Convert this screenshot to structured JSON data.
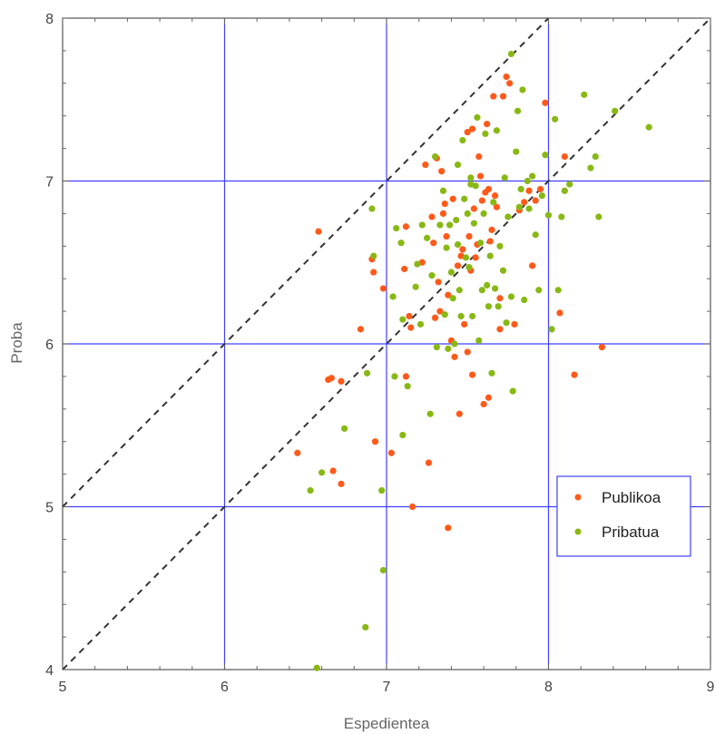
{
  "chart_data": {
    "type": "scatter",
    "title": "",
    "xlabel": "Espedientea",
    "ylabel": "Proba",
    "xlim": [
      5,
      9
    ],
    "ylim": [
      4,
      8
    ],
    "xticks": [
      "5",
      "6",
      "7",
      "8",
      "9"
    ],
    "yticks": [
      "4",
      "5",
      "6",
      "7",
      "8"
    ],
    "grid": true,
    "grid_color": "#4040ff",
    "reference_lines": [
      {
        "style": "dashed",
        "color": "#333333",
        "points": [
          [
            5,
            4
          ],
          [
            9,
            8
          ]
        ]
      },
      {
        "style": "dashed",
        "color": "#333333",
        "points": [
          [
            5,
            5
          ],
          [
            8,
            8
          ]
        ]
      }
    ],
    "legend_position": "right",
    "series": [
      {
        "name": "Publikoa",
        "color": "#ff5a1a",
        "points": [
          [
            6.58,
            6.69
          ],
          [
            6.45,
            5.33
          ],
          [
            6.64,
            5.78
          ],
          [
            6.66,
            5.79
          ],
          [
            6.67,
            5.22
          ],
          [
            6.72,
            5.77
          ],
          [
            6.72,
            5.14
          ],
          [
            6.84,
            6.09
          ],
          [
            6.91,
            6.52
          ],
          [
            6.92,
            6.44
          ],
          [
            6.93,
            5.4
          ],
          [
            6.98,
            6.34
          ],
          [
            7.03,
            5.33
          ],
          [
            7.11,
            6.46
          ],
          [
            7.12,
            6.72
          ],
          [
            7.12,
            5.8
          ],
          [
            7.14,
            6.17
          ],
          [
            7.15,
            6.1
          ],
          [
            7.16,
            5.0
          ],
          [
            7.22,
            6.5
          ],
          [
            7.24,
            7.1
          ],
          [
            7.26,
            5.27
          ],
          [
            7.28,
            6.78
          ],
          [
            7.29,
            6.62
          ],
          [
            7.3,
            6.16
          ],
          [
            7.31,
            7.14
          ],
          [
            7.32,
            6.38
          ],
          [
            7.33,
            6.2
          ],
          [
            7.34,
            7.06
          ],
          [
            7.35,
            6.8
          ],
          [
            7.36,
            6.86
          ],
          [
            7.37,
            6.66
          ],
          [
            7.38,
            6.3
          ],
          [
            7.38,
            4.87
          ],
          [
            7.4,
            6.02
          ],
          [
            7.41,
            6.89
          ],
          [
            7.42,
            5.92
          ],
          [
            7.44,
            6.48
          ],
          [
            7.45,
            5.57
          ],
          [
            7.46,
            6.54
          ],
          [
            7.47,
            6.58
          ],
          [
            7.48,
            6.12
          ],
          [
            7.5,
            5.95
          ],
          [
            7.5,
            7.3
          ],
          [
            7.51,
            6.66
          ],
          [
            7.52,
            6.45
          ],
          [
            7.53,
            7.32
          ],
          [
            7.53,
            5.81
          ],
          [
            7.54,
            6.83
          ],
          [
            7.55,
            6.53
          ],
          [
            7.56,
            6.61
          ],
          [
            7.57,
            7.15
          ],
          [
            7.58,
            7.03
          ],
          [
            7.59,
            6.88
          ],
          [
            7.6,
            5.63
          ],
          [
            7.61,
            6.93
          ],
          [
            7.62,
            7.35
          ],
          [
            7.63,
            6.95
          ],
          [
            7.63,
            5.67
          ],
          [
            7.64,
            6.63
          ],
          [
            7.65,
            6.7
          ],
          [
            7.66,
            7.52
          ],
          [
            7.67,
            6.91
          ],
          [
            7.68,
            6.84
          ],
          [
            7.7,
            6.28
          ],
          [
            7.7,
            6.09
          ],
          [
            7.72,
            7.52
          ],
          [
            7.74,
            7.64
          ],
          [
            7.76,
            7.6
          ],
          [
            7.79,
            6.12
          ],
          [
            7.82,
            6.82
          ],
          [
            7.85,
            6.87
          ],
          [
            7.88,
            6.94
          ],
          [
            7.9,
            6.48
          ],
          [
            7.92,
            6.88
          ],
          [
            7.95,
            6.95
          ],
          [
            7.98,
            7.48
          ],
          [
            8.07,
            6.19
          ],
          [
            8.1,
            7.15
          ],
          [
            8.16,
            5.81
          ],
          [
            8.33,
            5.98
          ]
        ]
      },
      {
        "name": "Pribatua",
        "color": "#88b814",
        "points": [
          [
            6.53,
            5.1
          ],
          [
            6.57,
            4.01
          ],
          [
            6.6,
            5.21
          ],
          [
            6.74,
            5.48
          ],
          [
            6.87,
            4.26
          ],
          [
            6.88,
            5.82
          ],
          [
            6.91,
            6.83
          ],
          [
            6.92,
            6.54
          ],
          [
            6.97,
            5.1
          ],
          [
            6.98,
            4.61
          ],
          [
            7.04,
            6.29
          ],
          [
            7.05,
            5.8
          ],
          [
            7.06,
            6.71
          ],
          [
            7.09,
            6.62
          ],
          [
            7.1,
            6.15
          ],
          [
            7.1,
            5.44
          ],
          [
            7.13,
            5.74
          ],
          [
            7.18,
            6.35
          ],
          [
            7.19,
            6.49
          ],
          [
            7.21,
            6.12
          ],
          [
            7.22,
            6.73
          ],
          [
            7.25,
            6.65
          ],
          [
            7.27,
            5.57
          ],
          [
            7.28,
            6.42
          ],
          [
            7.3,
            7.15
          ],
          [
            7.31,
            5.98
          ],
          [
            7.33,
            6.73
          ],
          [
            7.35,
            6.94
          ],
          [
            7.36,
            6.18
          ],
          [
            7.37,
            6.59
          ],
          [
            7.38,
            5.97
          ],
          [
            7.39,
            6.73
          ],
          [
            7.4,
            6.44
          ],
          [
            7.41,
            6.28
          ],
          [
            7.42,
            6.0
          ],
          [
            7.43,
            6.76
          ],
          [
            7.44,
            7.1
          ],
          [
            7.45,
            6.33
          ],
          [
            7.46,
            6.17
          ],
          [
            7.47,
            7.25
          ],
          [
            7.48,
            6.89
          ],
          [
            7.49,
            6.53
          ],
          [
            7.5,
            6.8
          ],
          [
            7.51,
            6.47
          ],
          [
            7.52,
            7.02
          ],
          [
            7.53,
            6.17
          ],
          [
            7.54,
            6.74
          ],
          [
            7.55,
            6.97
          ],
          [
            7.56,
            7.39
          ],
          [
            7.57,
            6.02
          ],
          [
            7.58,
            6.62
          ],
          [
            7.59,
            6.33
          ],
          [
            7.6,
            6.8
          ],
          [
            7.61,
            7.29
          ],
          [
            7.62,
            6.36
          ],
          [
            7.63,
            6.23
          ],
          [
            7.64,
            6.54
          ],
          [
            7.65,
            5.82
          ],
          [
            7.66,
            6.87
          ],
          [
            7.67,
            6.34
          ],
          [
            7.68,
            7.31
          ],
          [
            7.69,
            6.23
          ],
          [
            7.7,
            6.6
          ],
          [
            7.72,
            6.45
          ],
          [
            7.73,
            7.02
          ],
          [
            7.74,
            6.13
          ],
          [
            7.75,
            6.78
          ],
          [
            7.77,
            6.29
          ],
          [
            7.78,
            5.71
          ],
          [
            7.8,
            7.18
          ],
          [
            7.82,
            6.84
          ],
          [
            7.83,
            6.95
          ],
          [
            7.85,
            6.27
          ],
          [
            7.87,
            7.0
          ],
          [
            7.88,
            6.83
          ],
          [
            7.9,
            7.03
          ],
          [
            7.92,
            6.67
          ],
          [
            7.94,
            6.33
          ],
          [
            7.96,
            6.91
          ],
          [
            7.98,
            7.16
          ],
          [
            8.0,
            6.79
          ],
          [
            8.02,
            6.09
          ],
          [
            8.04,
            7.38
          ],
          [
            8.06,
            6.33
          ],
          [
            8.08,
            6.78
          ],
          [
            8.1,
            6.94
          ],
          [
            8.13,
            6.98
          ],
          [
            8.22,
            7.53
          ],
          [
            8.26,
            7.08
          ],
          [
            8.29,
            7.15
          ],
          [
            8.31,
            6.78
          ],
          [
            8.41,
            7.43
          ],
          [
            8.62,
            7.33
          ],
          [
            7.77,
            7.78
          ],
          [
            7.81,
            7.43
          ],
          [
            7.84,
            7.56
          ],
          [
            7.52,
            6.98
          ],
          [
            7.44,
            6.61
          ]
        ]
      }
    ]
  }
}
